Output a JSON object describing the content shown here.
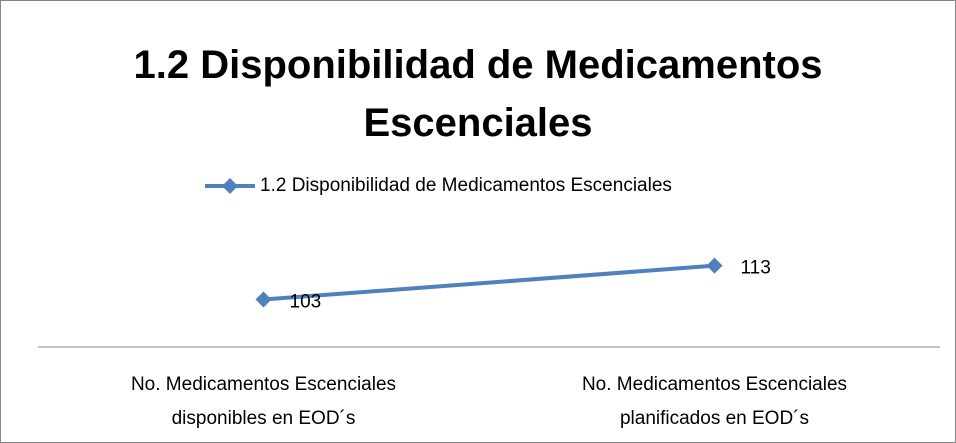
{
  "chart_data": {
    "type": "line",
    "title": "1.2 Disponibilidad de Medicamentos Escenciales",
    "categories": [
      "No. Medicamentos Escenciales disponibles en EOD´s",
      "No. Medicamentos Escenciales planificados en EOD´s"
    ],
    "series": [
      {
        "name": "1.2 Disponibilidad de Medicamentos Escenciales",
        "color": "#4f81bd",
        "values": [
          103,
          113
        ]
      }
    ],
    "ylim": [
      89,
      125
    ],
    "legend": "top"
  }
}
